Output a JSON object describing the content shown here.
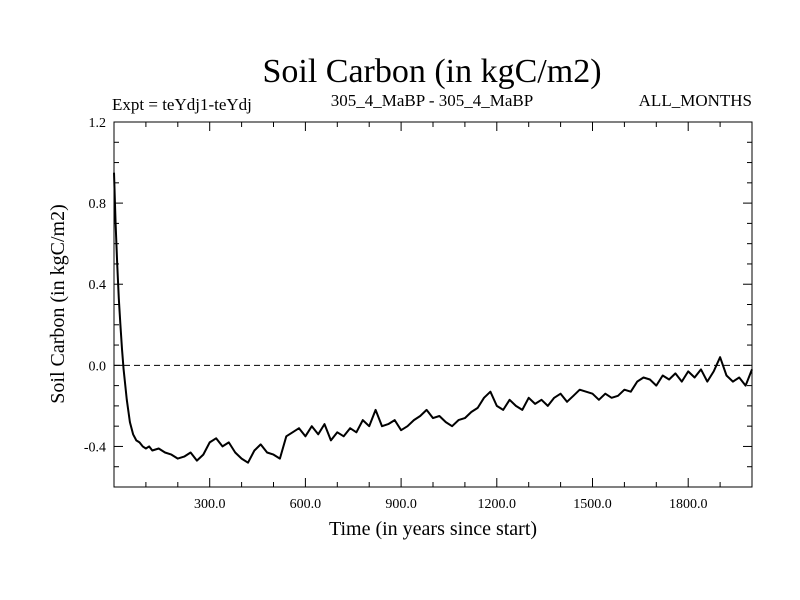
{
  "chart_data": {
    "type": "line",
    "title": "Soil Carbon (in kgC/m2)",
    "subtitle_left": "Expt = teYdj1-teYdj",
    "subtitle_center": "305_4_MaBP - 305_4_MaBP",
    "subtitle_right": "ALL_MONTHS",
    "xlabel": "Time (in years since start)",
    "ylabel": "Soil Carbon (in kgC/m2)",
    "xlim": [
      0,
      2000
    ],
    "ylim": [
      -0.6,
      1.2
    ],
    "xticks": [
      300,
      600,
      900,
      1200,
      1500,
      1800
    ],
    "xtick_labels": [
      "300.0",
      "600.0",
      "900.0",
      "1200.0",
      "1500.0",
      "1800.0"
    ],
    "yticks": [
      -0.4,
      0.0,
      0.4,
      0.8,
      1.2
    ],
    "ytick_labels": [
      "-0.4",
      "0.0",
      "0.4",
      "0.8",
      "1.2"
    ],
    "reference_line": {
      "y": 0.0,
      "style": "dashed"
    },
    "series": [
      {
        "name": "Soil Carbon",
        "x": [
          0,
          5,
          10,
          15,
          20,
          25,
          30,
          40,
          50,
          60,
          70,
          80,
          90,
          100,
          110,
          120,
          140,
          160,
          180,
          200,
          220,
          240,
          260,
          280,
          300,
          320,
          340,
          360,
          380,
          400,
          420,
          440,
          460,
          480,
          500,
          520,
          540,
          560,
          580,
          600,
          620,
          640,
          660,
          680,
          700,
          720,
          740,
          760,
          780,
          800,
          820,
          840,
          860,
          880,
          900,
          920,
          940,
          960,
          980,
          1000,
          1020,
          1040,
          1060,
          1080,
          1100,
          1120,
          1140,
          1160,
          1180,
          1200,
          1220,
          1240,
          1260,
          1280,
          1300,
          1320,
          1340,
          1360,
          1380,
          1400,
          1420,
          1440,
          1460,
          1480,
          1500,
          1520,
          1540,
          1560,
          1580,
          1600,
          1620,
          1640,
          1660,
          1680,
          1700,
          1720,
          1740,
          1760,
          1780,
          1800,
          1820,
          1840,
          1860,
          1880,
          1900,
          1920,
          1940,
          1960,
          1980,
          2000
        ],
        "y": [
          0.95,
          0.7,
          0.5,
          0.33,
          0.2,
          0.08,
          -0.02,
          -0.17,
          -0.28,
          -0.34,
          -0.37,
          -0.38,
          -0.4,
          -0.41,
          -0.4,
          -0.42,
          -0.41,
          -0.43,
          -0.44,
          -0.46,
          -0.45,
          -0.43,
          -0.47,
          -0.44,
          -0.38,
          -0.36,
          -0.4,
          -0.38,
          -0.43,
          -0.46,
          -0.48,
          -0.42,
          -0.39,
          -0.43,
          -0.44,
          -0.46,
          -0.35,
          -0.33,
          -0.31,
          -0.35,
          -0.3,
          -0.34,
          -0.29,
          -0.37,
          -0.33,
          -0.35,
          -0.31,
          -0.33,
          -0.27,
          -0.3,
          -0.22,
          -0.3,
          -0.29,
          -0.27,
          -0.32,
          -0.3,
          -0.27,
          -0.25,
          -0.22,
          -0.26,
          -0.25,
          -0.28,
          -0.3,
          -0.27,
          -0.26,
          -0.23,
          -0.21,
          -0.16,
          -0.13,
          -0.2,
          -0.22,
          -0.17,
          -0.2,
          -0.22,
          -0.16,
          -0.19,
          -0.17,
          -0.2,
          -0.16,
          -0.14,
          -0.18,
          -0.15,
          -0.12,
          -0.13,
          -0.14,
          -0.17,
          -0.14,
          -0.16,
          -0.15,
          -0.12,
          -0.13,
          -0.08,
          -0.06,
          -0.07,
          -0.1,
          -0.05,
          -0.07,
          -0.04,
          -0.08,
          -0.03,
          -0.06,
          -0.02,
          -0.08,
          -0.03,
          0.04,
          -0.05,
          -0.08,
          -0.06,
          -0.1,
          -0.02
        ]
      }
    ]
  }
}
